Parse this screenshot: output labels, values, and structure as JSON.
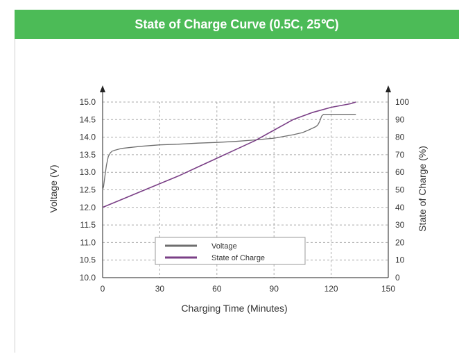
{
  "header": {
    "title": "State of Charge Curve (0.5C, 25℃)"
  },
  "colors": {
    "header_bg": "#4cbb57",
    "voltage": "#6e6e6e",
    "soc": "#7a3f86",
    "grid": "#aaaaaa"
  },
  "chart_data": {
    "type": "line",
    "xlabel": "Charging Time (Minutes)",
    "ylabel": "Voltage (V)",
    "y2label": "State of Charge (%)",
    "xlim": [
      0,
      150
    ],
    "ylim": [
      10.0,
      15.0
    ],
    "y2lim": [
      0,
      100
    ],
    "x_ticks": [
      "0",
      "30",
      "60",
      "90",
      "120",
      "150"
    ],
    "y_ticks": [
      "10.0",
      "10.5",
      "11.0",
      "11.5",
      "12.0",
      "12.5",
      "13.0",
      "13.5",
      "14.0",
      "14.5",
      "15.0"
    ],
    "y2_ticks": [
      "0",
      "10",
      "20",
      "30",
      "40",
      "50",
      "60",
      "70",
      "80",
      "90",
      "100"
    ],
    "grid": true,
    "legend": "lower-center",
    "series": [
      {
        "name": "Voltage",
        "axis": "left",
        "x": [
          0,
          0.5,
          1,
          2,
          3,
          4,
          5,
          6,
          10,
          20,
          30,
          40,
          50,
          60,
          70,
          80,
          90,
          95,
          100,
          105,
          108,
          110,
          112,
          113,
          114,
          115,
          116,
          120,
          130,
          133
        ],
        "y": [
          12.5,
          12.6,
          12.8,
          13.2,
          13.45,
          13.55,
          13.6,
          13.62,
          13.68,
          13.74,
          13.78,
          13.8,
          13.83,
          13.85,
          13.88,
          13.92,
          13.97,
          14.02,
          14.07,
          14.13,
          14.2,
          14.25,
          14.3,
          14.35,
          14.45,
          14.6,
          14.65,
          14.65,
          14.65,
          14.65
        ]
      },
      {
        "name": "State of Charge",
        "axis": "right",
        "x": [
          0,
          10,
          20,
          30,
          40,
          50,
          60,
          70,
          80,
          90,
          95,
          100,
          110,
          120,
          130,
          133
        ],
        "y": [
          40,
          44.5,
          49,
          53.5,
          58,
          63,
          68,
          73,
          78,
          84,
          87,
          90,
          94,
          97,
          99,
          100
        ]
      }
    ]
  }
}
